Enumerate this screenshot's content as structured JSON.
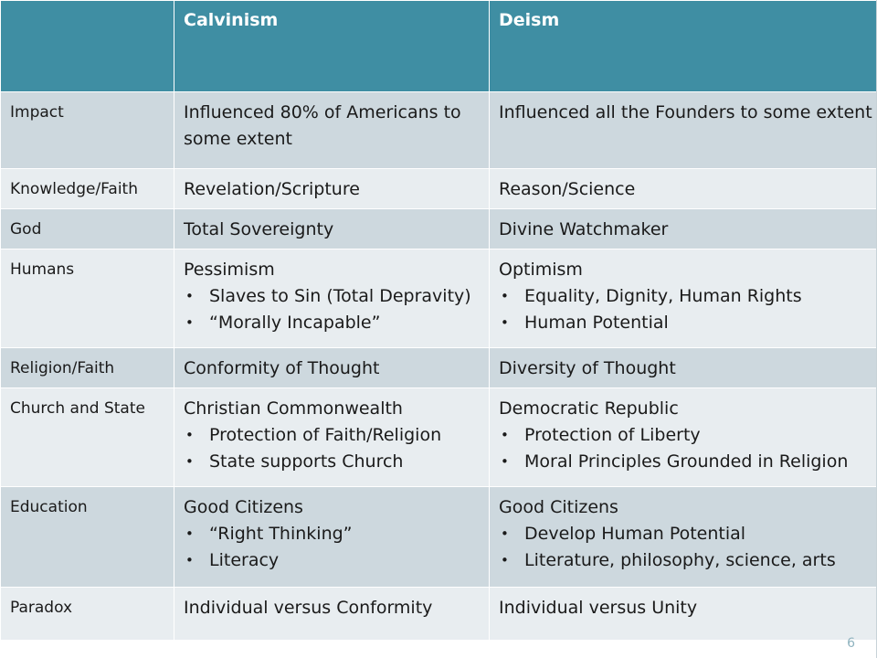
{
  "header": {
    "blank": "",
    "col1": "Calvinism",
    "col2": "Deism"
  },
  "rows": [
    {
      "label": "Impact",
      "calvinism": {
        "text": "Influenced 80% of Americans to some extent",
        "bullets": []
      },
      "deism": {
        "text": "Influenced all the Founders to some extent",
        "bullets": []
      }
    },
    {
      "label": "Knowledge/Faith",
      "calvinism": {
        "text": "Revelation/Scripture",
        "bullets": []
      },
      "deism": {
        "text": "Reason/Science",
        "bullets": []
      }
    },
    {
      "label": "God",
      "calvinism": {
        "text": "Total Sovereignty",
        "bullets": []
      },
      "deism": {
        "text": "Divine Watchmaker",
        "bullets": []
      }
    },
    {
      "label": "Humans",
      "calvinism": {
        "text": "Pessimism",
        "bullets": [
          "Slaves to Sin (Total Depravity)",
          "“Morally Incapable”"
        ]
      },
      "deism": {
        "text": "Optimism",
        "bullets": [
          "Equality, Dignity,  Human Rights",
          "Human Potential"
        ]
      }
    },
    {
      "label": "Religion/Faith",
      "calvinism": {
        "text": "Conformity of  Thought",
        "bullets": []
      },
      "deism": {
        "text": "Diversity of Thought",
        "bullets": []
      }
    },
    {
      "label": "Church and State",
      "calvinism": {
        "text": "Christian Commonwealth",
        "bullets": [
          "Protection of Faith/Religion",
          "State supports Church"
        ]
      },
      "deism": {
        "text": "Democratic Republic",
        "bullets": [
          "Protection of Liberty",
          "Moral Principles Grounded in Religion"
        ]
      }
    },
    {
      "label": "Education",
      "calvinism": {
        "text": "Good Citizens",
        "bullets": [
          "“Right Thinking”",
          "Literacy"
        ]
      },
      "deism": {
        "text": "Good Citizens",
        "bullets": [
          "Develop Human Potential",
          "Literature, philosophy, science, arts"
        ]
      }
    },
    {
      "label": "Paradox",
      "calvinism": {
        "text": "Individual versus Conformity",
        "bullets": []
      },
      "deism": {
        "text": "Individual versus Unity",
        "bullets": []
      }
    }
  ],
  "bullet_char": "•",
  "page_number": "6",
  "colors": {
    "header": "#3f8ea3",
    "row_odd": "#cdd8de",
    "row_even": "#e8edf0",
    "header_text": "#ffffff"
  }
}
